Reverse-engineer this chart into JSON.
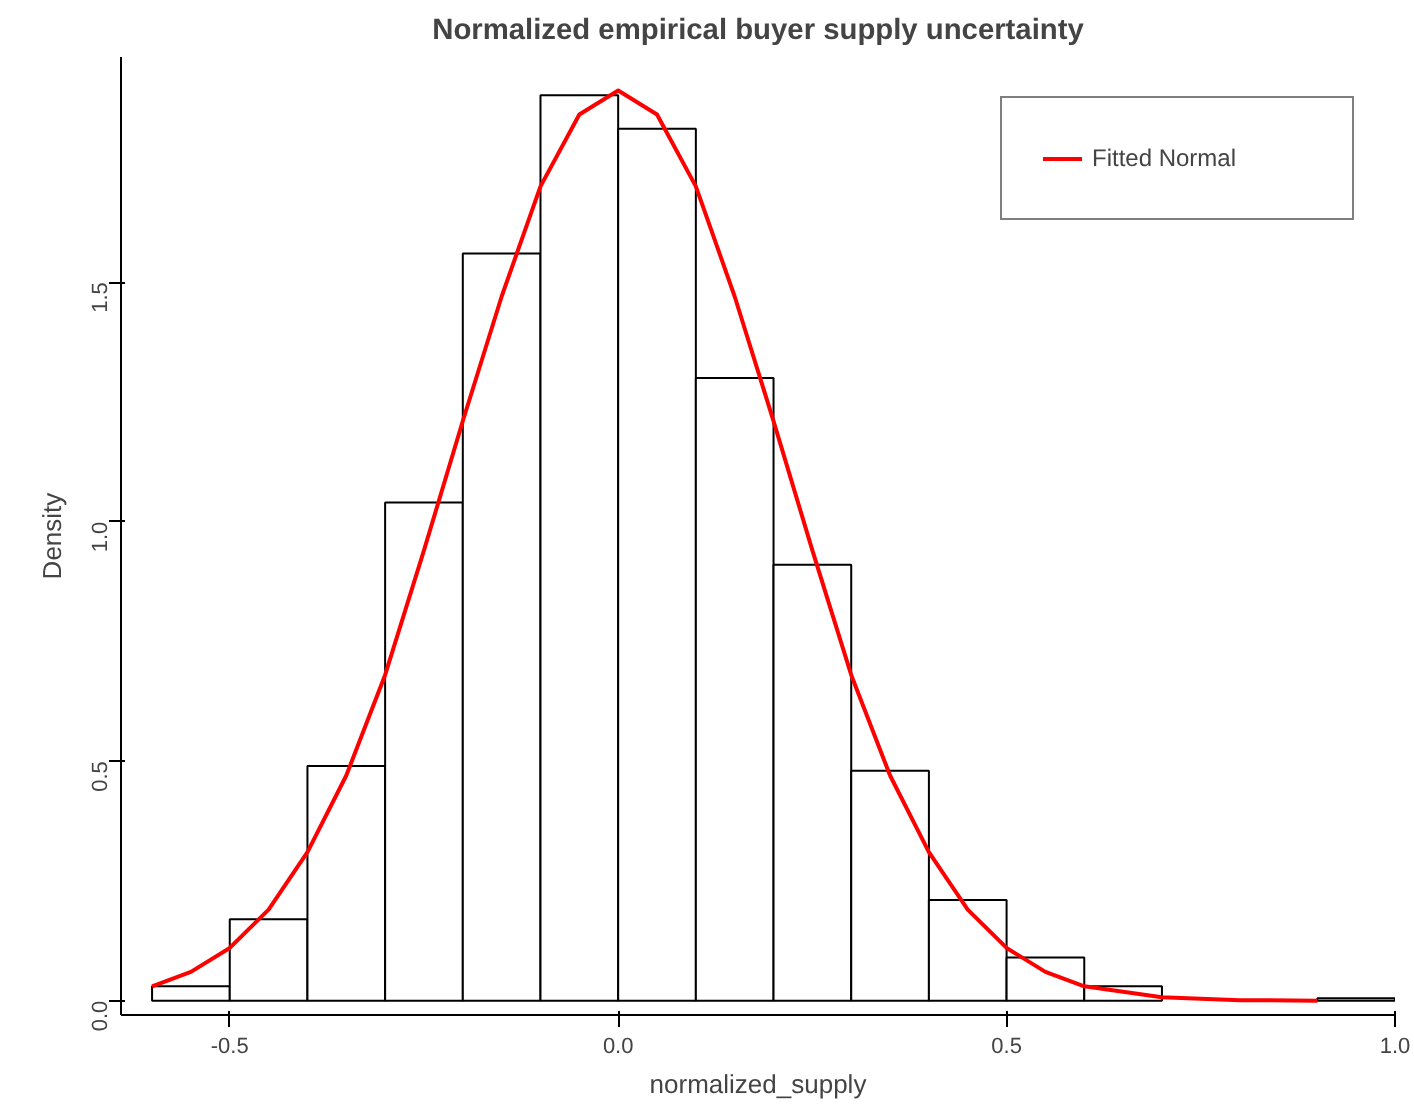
{
  "chart_data": {
    "type": "histogram",
    "title": "Normalized empirical buyer supply uncertainty",
    "xlabel": "normalized_supply",
    "ylabel": "Density",
    "bins": [
      -0.6,
      -0.5,
      -0.4,
      -0.3,
      -0.2,
      -0.1,
      0.0,
      0.1,
      0.2,
      0.3,
      0.4,
      0.5,
      0.6,
      0.7,
      0.8,
      0.9,
      1.0
    ],
    "values": [
      0.03,
      0.17,
      0.49,
      1.04,
      1.56,
      1.89,
      1.82,
      1.3,
      0.91,
      0.48,
      0.21,
      0.09,
      0.03,
      null,
      null,
      0.005
    ],
    "color": "#ffffff",
    "series": [
      {
        "type": "line",
        "name": "Fitted Normal",
        "color": "#ff0000",
        "x": [
          -0.6,
          -0.55,
          -0.5,
          -0.45,
          -0.4,
          -0.35,
          -0.3,
          -0.25,
          -0.2,
          -0.15,
          -0.1,
          -0.05,
          0.0,
          0.05,
          0.1,
          0.15,
          0.2,
          0.25,
          0.3,
          0.35,
          0.4,
          0.45,
          0.5,
          0.55,
          0.6,
          0.7,
          0.8,
          0.9
        ],
        "values": [
          0.03,
          0.06,
          0.11,
          0.19,
          0.31,
          0.47,
          0.68,
          0.94,
          1.21,
          1.47,
          1.7,
          1.85,
          1.9,
          1.85,
          1.7,
          1.47,
          1.21,
          0.94,
          0.68,
          0.47,
          0.31,
          0.19,
          0.11,
          0.06,
          0.03,
          0.007,
          0.001,
          0.0
        ]
      }
    ],
    "xlim": [
      -0.64,
      1.0
    ],
    "ylim": [
      -0.03,
      1.97
    ],
    "xticks": [
      -0.5,
      {
        "value": 0,
        "label": "0.0"
      },
      0.5,
      {
        "value": 1,
        "label": "1.0"
      }
    ],
    "yticks": [
      {
        "value": 0,
        "label": "0.0"
      },
      0.5,
      {
        "value": 1,
        "label": "1.0"
      },
      1.5
    ],
    "grid": false,
    "legend": "top right"
  }
}
